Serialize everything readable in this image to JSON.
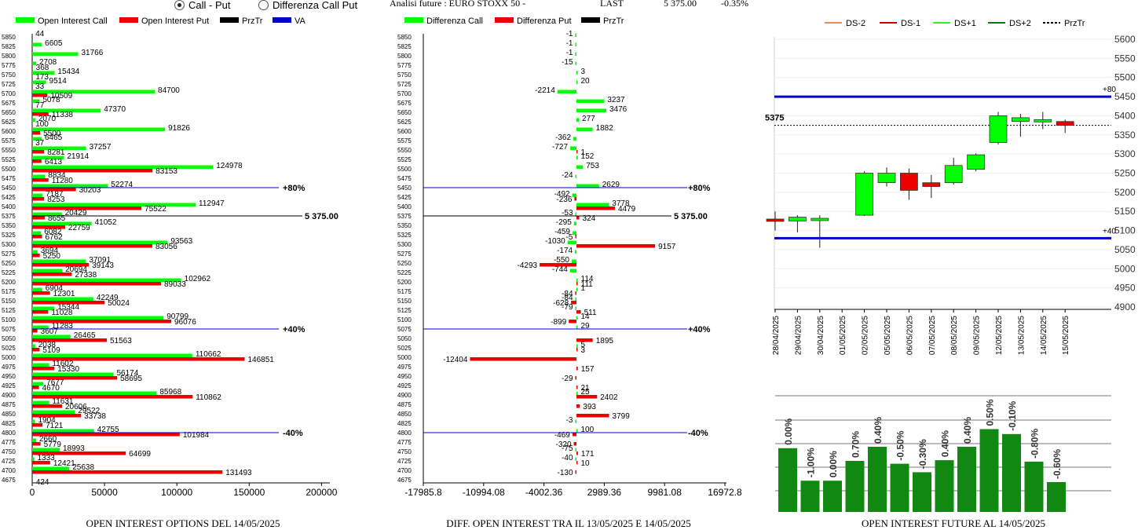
{
  "header": {
    "radio_call_put": "Call - Put",
    "radio_diff": "Differenza Call Put",
    "futures_label": "Analisi future : EURO STOXX 50 -",
    "last_label": "LAST",
    "last_value": "5 375.00",
    "change": "-0.35%",
    "selected": "call_put"
  },
  "colors": {
    "call": "#00ff00",
    "put": "#ee0000",
    "przTr": "#000000",
    "va": "#0000cc",
    "future_bar": "#118811"
  },
  "chart_data": [
    {
      "id": "oi",
      "type": "bar",
      "orientation": "horizontal",
      "title": "OPEN INTEREST OPTIONS DEL 14/05/2025",
      "legend": [
        "Open Interest Call",
        "Open Interest Put",
        "PrzTr",
        "VA"
      ],
      "strikes": [
        5850,
        5825,
        5800,
        5775,
        5750,
        5725,
        5700,
        5675,
        5650,
        5625,
        5600,
        5575,
        5550,
        5525,
        5500,
        5475,
        5450,
        5425,
        5400,
        5375,
        5350,
        5325,
        5300,
        5275,
        5250,
        5225,
        5200,
        5175,
        5150,
        5125,
        5100,
        5075,
        5050,
        5025,
        5000,
        4975,
        4950,
        4925,
        4900,
        4875,
        4850,
        4825,
        4800,
        4775,
        4750,
        4725,
        4700,
        4675
      ],
      "call": [
        44,
        6605,
        31766,
        2708,
        15434,
        9514,
        84700,
        5078,
        47370,
        2070,
        91826,
        6465,
        37257,
        21914,
        124978,
        8834,
        52274,
        7187,
        112947,
        20429,
        41052,
        6082,
        93563,
        3694,
        37091,
        20694,
        102962,
        6904,
        42249,
        15344,
        90799,
        11283,
        26465,
        2038,
        110662,
        11602,
        56174,
        7677,
        85968,
        11631,
        29522,
        1904,
        42755,
        2660,
        18993,
        1333,
        25638,
        0
      ],
      "put": [
        0,
        0,
        0,
        368,
        173,
        33,
        10509,
        77,
        11338,
        100,
        5500,
        37,
        8281,
        6413,
        83153,
        11280,
        30203,
        8253,
        75522,
        8655,
        22759,
        6762,
        83056,
        5250,
        39143,
        27338,
        89033,
        12301,
        50024,
        11028,
        96076,
        3607,
        51563,
        5109,
        146851,
        15330,
        58695,
        4670,
        110862,
        20606,
        33738,
        7121,
        101984,
        5779,
        64699,
        12421,
        131493,
        424
      ],
      "xticks": [
        0,
        50000,
        100000,
        150000,
        200000
      ],
      "ylim": [
        4675,
        5850
      ],
      "lines": [
        {
          "strike": 5450,
          "label": "+80%"
        },
        {
          "strike": 5375,
          "label": "5 375.00"
        },
        {
          "strike": 5075,
          "label": "+40%"
        },
        {
          "strike": 4800,
          "label": "-40%"
        }
      ]
    },
    {
      "id": "diff",
      "type": "bar",
      "orientation": "horizontal",
      "title": "DIFF. OPEN INTEREST TRA IL 13/05/2025 E 14/05/2025",
      "legend": [
        "Differenza Call",
        "Differenza Put",
        "PrzTr"
      ],
      "strikes": [
        5850,
        5825,
        5800,
        5775,
        5750,
        5725,
        5700,
        5675,
        5650,
        5625,
        5600,
        5575,
        5550,
        5525,
        5500,
        5475,
        5450,
        5425,
        5400,
        5375,
        5350,
        5325,
        5300,
        5275,
        5250,
        5225,
        5200,
        5175,
        5150,
        5125,
        5100,
        5075,
        5050,
        5025,
        5000,
        4975,
        4950,
        4925,
        4900,
        4875,
        4850,
        4825,
        4800,
        4775,
        4750,
        4725,
        4700,
        4675
      ],
      "call": [
        -1,
        -1,
        -1,
        -15,
        3,
        20,
        -2214,
        3237,
        3476,
        277,
        1882,
        -362,
        -727,
        152,
        753,
        -24,
        2629,
        -492,
        3778,
        -53,
        -295,
        -459,
        -1030,
        -174,
        -550,
        -744,
        114,
        1,
        -84,
        -79,
        14,
        29,
        0,
        5,
        0,
        0,
        0,
        0,
        25,
        0,
        0,
        -3,
        100,
        0,
        -75,
        -40,
        0,
        0
      ],
      "put": [
        0,
        0,
        0,
        0,
        0,
        0,
        0,
        0,
        0,
        0,
        0,
        0,
        1,
        0,
        0,
        0,
        0,
        -236,
        4479,
        324,
        0,
        -5,
        9157,
        0,
        -4293,
        0,
        111,
        -84,
        -628,
        511,
        -899,
        0,
        1895,
        3,
        -12404,
        157,
        -29,
        21,
        2402,
        393,
        3799,
        0,
        -469,
        -320,
        171,
        10,
        -130,
        0
      ],
      "xticks": [
        -17985.8,
        -10994.08,
        -4002.36,
        2989.36,
        9981.08,
        16972.8
      ],
      "xlim": [
        -17985.8,
        16972.8
      ],
      "lines": [
        {
          "strike": 5450,
          "label": "+80%"
        },
        {
          "strike": 5375,
          "label": "5 375.00"
        },
        {
          "strike": 5075,
          "label": "+40%"
        },
        {
          "strike": 4800,
          "label": "-40%"
        }
      ]
    },
    {
      "id": "candles",
      "type": "candlestick",
      "legend": [
        "DS-2",
        "DS-1",
        "DS+1",
        "DS+2",
        "PrzTr"
      ],
      "dates": [
        "28/04/2025",
        "29/04/2025",
        "30/04/2025",
        "01/05/2025",
        "02/05/2025",
        "05/05/2025",
        "06/05/2025",
        "07/05/2025",
        "08/05/2025",
        "09/05/2025",
        "12/05/2025",
        "13/05/2025",
        "14/05/2025",
        "15/05/2025"
      ],
      "candles": [
        {
          "o": 5130,
          "h": 5150,
          "l": 5100,
          "c": 5125
        },
        {
          "o": 5125,
          "h": 5140,
          "l": 5095,
          "c": 5135
        },
        {
          "o": 5128,
          "h": 5140,
          "l": 5055,
          "c": 5132
        },
        null,
        {
          "o": 5140,
          "h": 5255,
          "l": 5138,
          "c": 5250
        },
        {
          "o": 5225,
          "h": 5265,
          "l": 5215,
          "c": 5250
        },
        {
          "o": 5250,
          "h": 5262,
          "l": 5180,
          "c": 5205
        },
        {
          "o": 5225,
          "h": 5245,
          "l": 5185,
          "c": 5215
        },
        {
          "o": 5225,
          "h": 5290,
          "l": 5220,
          "c": 5270
        },
        {
          "o": 5260,
          "h": 5302,
          "l": 5255,
          "c": 5298
        },
        {
          "o": 5330,
          "h": 5410,
          "l": 5325,
          "c": 5400
        },
        {
          "o": 5385,
          "h": 5405,
          "l": 5345,
          "c": 5395
        },
        {
          "o": 5390,
          "h": 5410,
          "l": 5365,
          "c": 5390
        },
        {
          "o": 5385,
          "h": 5390,
          "l": 5355,
          "c": 5375
        }
      ],
      "yticks": [
        4900,
        4950,
        5000,
        5050,
        5100,
        5150,
        5200,
        5250,
        5300,
        5350,
        5400,
        5450,
        5500,
        5550,
        5600
      ],
      "ylim": [
        4900,
        5600
      ],
      "hlines": [
        {
          "value": 5450,
          "label": "+80"
        },
        {
          "value": 5080,
          "label": "+40"
        }
      ],
      "przTr": {
        "value": 5375,
        "label": "5375"
      }
    },
    {
      "id": "future_oi",
      "type": "bar",
      "title": "OPEN INTEREST FUTURE AL 14/05/2025",
      "values": [
        0.0,
        -1.0,
        0.0,
        0.7,
        0.4,
        -0.5,
        -0.3,
        0.4,
        0.4,
        0.5,
        -0.1,
        -0.8,
        -0.6
      ],
      "labels": [
        "0.00%",
        "-1.00%",
        "0.00%",
        "0.70%",
        "0.40%",
        "-0.50%",
        "-0.30%",
        "0.40%",
        "0.40%",
        "0.50%",
        "-0.10%",
        "-0.80%",
        "-0.60%"
      ],
      "heights": [
        0.68,
        0.22,
        0.22,
        0.5,
        0.7,
        0.46,
        0.34,
        0.51,
        0.7,
        0.95,
        0.88,
        0.49,
        0.2
      ]
    }
  ]
}
